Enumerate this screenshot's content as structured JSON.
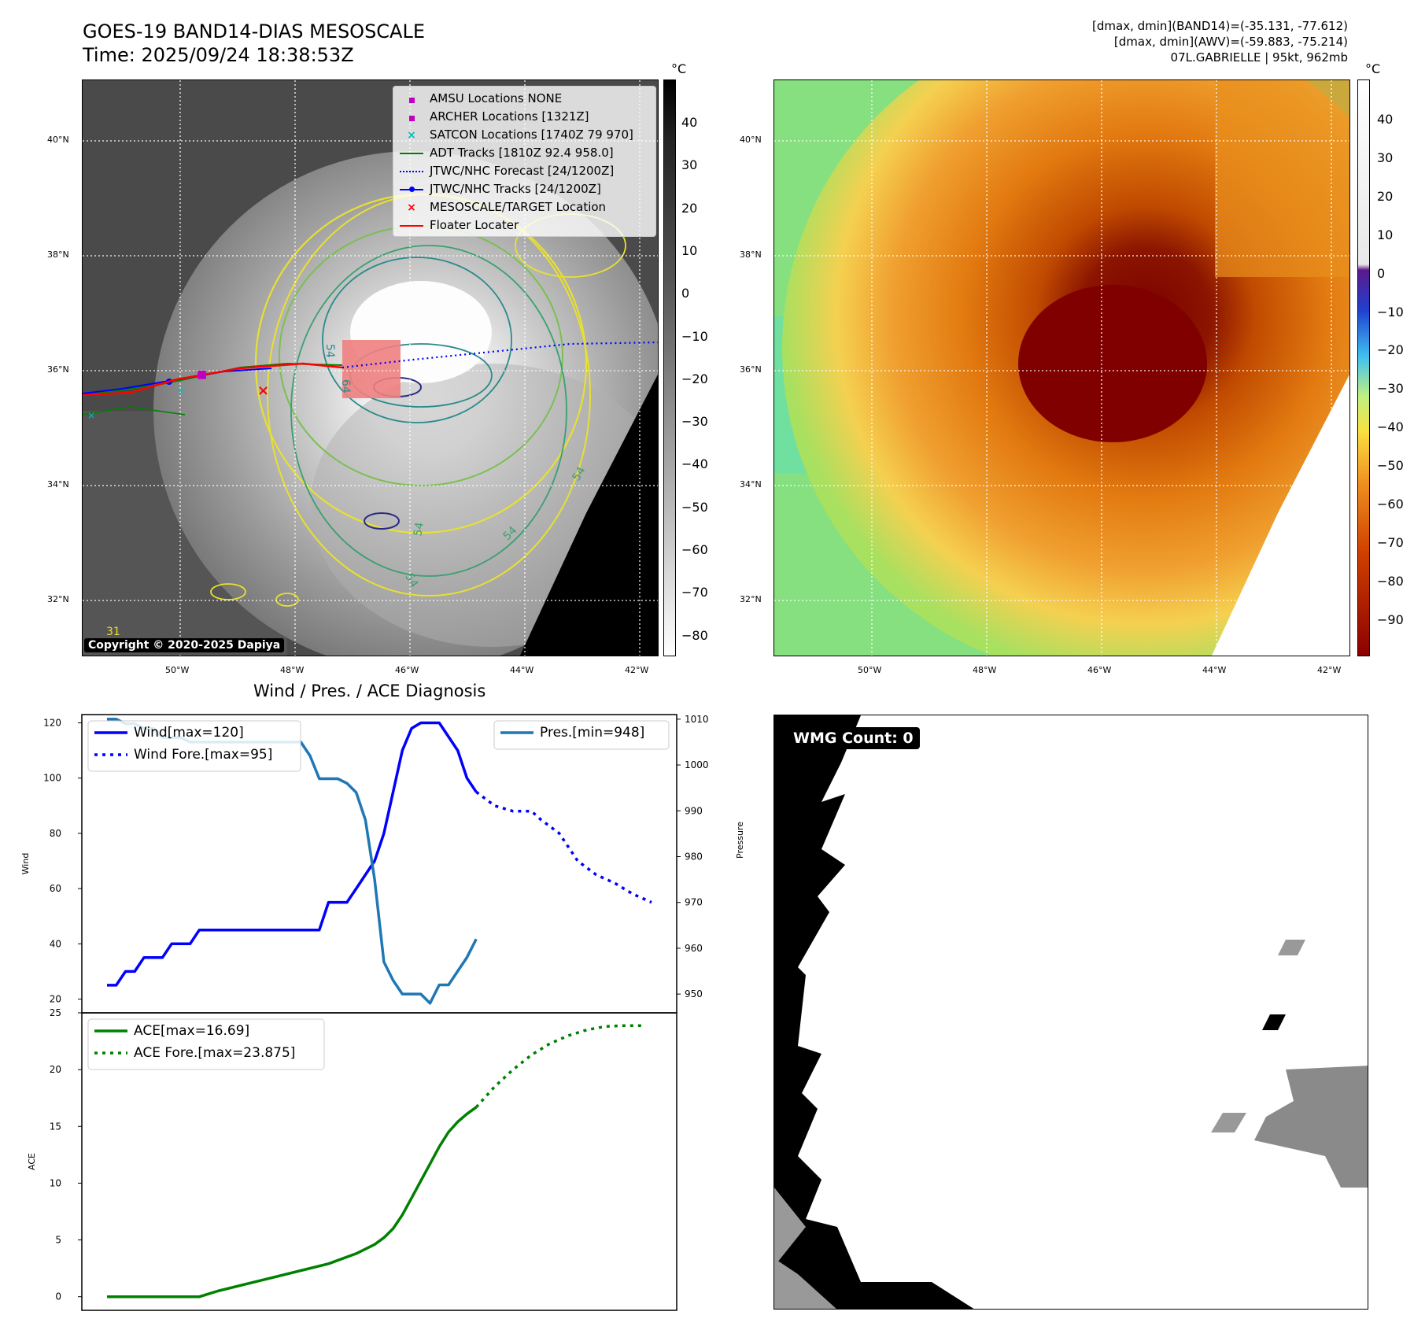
{
  "header": {
    "title_line1": "GOES-19 BAND14-DIAS MESOSCALE",
    "title_line2": "Time: 2025/09/24 18:38:53Z",
    "info_line1": "[dmax, dmin](BAND14)=(-35.131, -77.612)",
    "info_line2": "[dmax, dmin](AWV)=(-59.883, -75.214)",
    "info_line3": "07L.GABRIELLE | 95kt, 962mb"
  },
  "map": {
    "lat_labels": [
      "40°N",
      "38°N",
      "36°N",
      "34°N",
      "32°N"
    ],
    "lon_labels": [
      "50°W",
      "48°W",
      "46°W",
      "44°W",
      "42°W"
    ],
    "contour_labels": [
      "54",
      "64",
      "54",
      "54",
      "54",
      "54",
      "31"
    ],
    "copyright": "Copyright © 2020-2025 Dapiya",
    "legend": [
      {
        "label": "AMSU Locations NONE",
        "color": "#c000c0",
        "kind": "square"
      },
      {
        "label": "ARCHER Locations [1321Z]",
        "color": "#c000c0",
        "kind": "square"
      },
      {
        "label": "SATCON Locations [1740Z 79 970]",
        "color": "#00bfbf",
        "kind": "x"
      },
      {
        "label": "ADT Tracks [1810Z 92.4 958.0]",
        "color": "#008000",
        "kind": "line"
      },
      {
        "label": "JTWC/NHC Forecast [24/1200Z]",
        "color": "#0000ff",
        "kind": "dotted"
      },
      {
        "label": "JTWC/NHC Tracks [24/1200Z]",
        "color": "#0000ff",
        "kind": "line-dot"
      },
      {
        "label": "MESOSCALE/TARGET Location",
        "color": "#ff0000",
        "kind": "x"
      },
      {
        "label": "Floater Locater",
        "color": "#ff0000",
        "kind": "line"
      }
    ]
  },
  "colorbar_left": {
    "unit": "°C",
    "ticks": [
      "40",
      "30",
      "20",
      "10",
      "0",
      "−10",
      "−20",
      "−30",
      "−40",
      "−50",
      "−60",
      "−70",
      "−80"
    ]
  },
  "colorbar_right": {
    "unit": "°C",
    "ticks": [
      "40",
      "30",
      "20",
      "10",
      "0",
      "−10",
      "−20",
      "−30",
      "−40",
      "−50",
      "−60",
      "−70",
      "−80",
      "−90"
    ]
  },
  "diag_title": "Wind / Pres. / ACE Diagnosis",
  "chart_data": [
    {
      "type": "line",
      "title": "Wind / Pres. / ACE Diagnosis",
      "ylabel": "Wind",
      "ylabel_right": "Pressure",
      "ylim": [
        15,
        123
      ],
      "ylim_right": [
        945.9,
        1011
      ],
      "yticks": [
        20,
        40,
        60,
        80,
        100,
        120
      ],
      "yticks_right": [
        950,
        960,
        970,
        980,
        990,
        1000,
        1010
      ],
      "n_points": 60,
      "series": [
        {
          "name": "Wind[max=120]",
          "color": "#0000ff",
          "style": "solid",
          "axis": "left",
          "x": [
            0,
            1,
            2,
            3,
            4,
            5,
            6,
            7,
            8,
            9,
            10,
            11,
            12,
            13,
            14,
            15,
            16,
            17,
            18,
            19,
            20,
            21,
            22,
            23,
            24,
            25,
            26,
            27,
            28,
            29,
            30,
            31,
            32,
            33,
            34,
            35,
            36,
            37,
            38,
            39,
            40
          ],
          "values": [
            25,
            25,
            30,
            30,
            35,
            35,
            35,
            40,
            40,
            40,
            45,
            45,
            45,
            45,
            45,
            45,
            45,
            45,
            45,
            45,
            45,
            45,
            45,
            45,
            55,
            55,
            55,
            60,
            65,
            70,
            80,
            95,
            110,
            118,
            120,
            120,
            120,
            115,
            110,
            100,
            95
          ]
        },
        {
          "name": "Wind Fore.[max=95]",
          "color": "#0000ff",
          "style": "dotted",
          "axis": "left",
          "x": [
            40,
            42,
            44,
            46,
            47,
            49,
            51,
            53,
            55,
            57,
            59
          ],
          "values": [
            95,
            90,
            88,
            88,
            85,
            80,
            70,
            65,
            62,
            58,
            55
          ]
        },
        {
          "name": "Pres.[min=948]",
          "color": "#1f77b4",
          "style": "solid",
          "axis": "right",
          "x": [
            0,
            1,
            2,
            3,
            4,
            5,
            6,
            7,
            8,
            9,
            10,
            11,
            12,
            13,
            14,
            15,
            16,
            17,
            18,
            19,
            20,
            21,
            22,
            23,
            24,
            25,
            26,
            27,
            28,
            29,
            30,
            31,
            32,
            33,
            34,
            35,
            36,
            37,
            38,
            39,
            40
          ],
          "values": [
            1010,
            1010,
            1009,
            1009,
            1008,
            1008,
            1006,
            1006,
            1006,
            1005,
            1005,
            1005,
            1005,
            1005,
            1005,
            1005,
            1005,
            1005,
            1005,
            1005,
            1005,
            1005,
            1002,
            997,
            997,
            997,
            996,
            994,
            988,
            975,
            957,
            953,
            950,
            950,
            950,
            948,
            952,
            952,
            955,
            958,
            962
          ]
        },
        {
          "name": "ACE[max=16.69]",
          "color": "#008000",
          "style": "solid",
          "axis": "ace",
          "x": [
            0,
            4,
            8,
            10,
            12,
            15,
            18,
            21,
            24,
            27,
            29,
            30,
            31,
            32,
            33,
            34,
            35,
            36,
            37,
            38,
            39,
            40
          ],
          "values": [
            0,
            0,
            0,
            0,
            0.5,
            1.1,
            1.7,
            2.3,
            2.9,
            3.8,
            4.6,
            5.2,
            6.0,
            7.2,
            8.7,
            10.2,
            11.7,
            13.2,
            14.5,
            15.4,
            16.1,
            16.69
          ]
        },
        {
          "name": "ACE Fore.[max=23.875]",
          "color": "#008000",
          "style": "dotted",
          "axis": "ace",
          "x": [
            40,
            42,
            44,
            46,
            48,
            50,
            52,
            54,
            56,
            58
          ],
          "values": [
            16.69,
            18.5,
            20.0,
            21.3,
            22.3,
            23.0,
            23.5,
            23.8,
            23.875,
            23.875
          ]
        }
      ]
    },
    {
      "type": "line",
      "ylabel": "ACE",
      "ylim": [
        -1.2,
        25
      ],
      "yticks": [
        0,
        5,
        10,
        15,
        20,
        25
      ]
    }
  ],
  "wmg": {
    "label": "WMG Count: 0"
  }
}
